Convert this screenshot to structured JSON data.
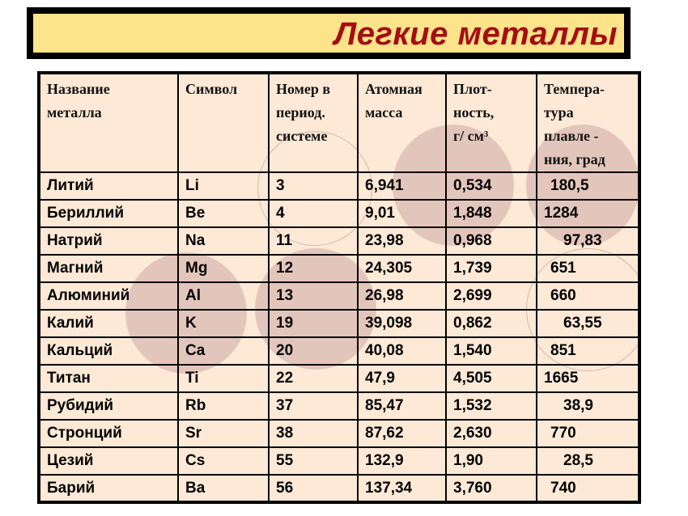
{
  "title": "Легкие металлы",
  "colors": {
    "title_text": "#a50d12",
    "title_bg": "#fde38a",
    "table_bg": "#fde9d6"
  },
  "table": {
    "headers": [
      "Название металла",
      "Символ",
      "Номер в период. системе",
      "Атомная масса",
      "Плот-ность, г/ см³",
      "Темпера-тура плавле - ния, град"
    ],
    "header_lines": [
      [
        "Название",
        "металла"
      ],
      [
        "Символ"
      ],
      [
        "Номер в",
        "период.",
        "системе"
      ],
      [
        "Атомная",
        "масса"
      ],
      [
        "Плот-",
        "ность,",
        "г/ см³"
      ],
      [
        "Темпера-",
        "тура",
        "плавле -",
        "ния, град"
      ]
    ],
    "rows": [
      [
        "Литий",
        "Li",
        "3",
        "6,941",
        "0,534",
        "180,5"
      ],
      [
        "Бериллий",
        "Be",
        "4",
        "9,01",
        "1,848",
        "1284"
      ],
      [
        "Натрий",
        "Na",
        "11",
        "23,98",
        "0,968",
        "97,83"
      ],
      [
        "Магний",
        "Mg",
        "12",
        "24,305",
        "1,739",
        "651"
      ],
      [
        "Алюминий",
        "Al",
        "13",
        "26,98",
        "2,699",
        "660"
      ],
      [
        "Калий",
        "K",
        "19",
        "39,098",
        "0,862",
        "63,55"
      ],
      [
        "Кальций",
        "Ca",
        "20",
        "40,08",
        "1,540",
        "851"
      ],
      [
        "Титан",
        "Ti",
        "22",
        "47,9",
        "4,505",
        "1665"
      ],
      [
        "Рубидий",
        "Rb",
        "37",
        "85,47",
        "1,532",
        "38,9"
      ],
      [
        "Стронций",
        "Sr",
        "38",
        "87,62",
        "2,630",
        "770"
      ],
      [
        "Цезий",
        "Cs",
        "55",
        "132,9",
        "1,90",
        "28,5"
      ],
      [
        "Барий",
        "Ba",
        "56",
        "137,34",
        "3,760",
        "740"
      ]
    ]
  }
}
